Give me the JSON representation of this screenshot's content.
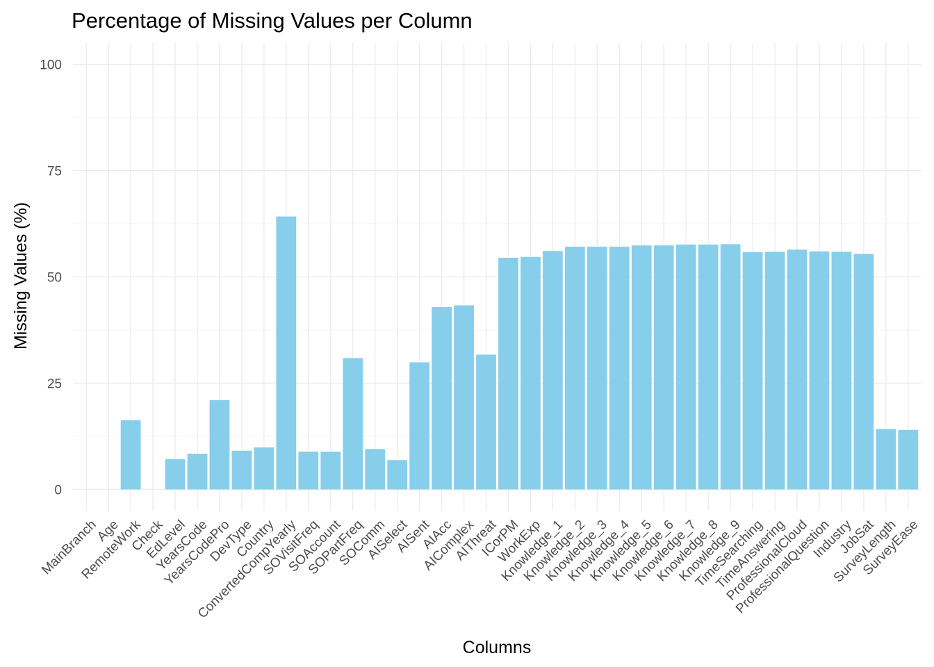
{
  "chart_data": {
    "type": "bar",
    "title": "Percentage of Missing Values per Column",
    "xlabel": "Columns",
    "ylabel": "Missing Values (%)",
    "ylim": [
      -5,
      105
    ],
    "yticks": [
      0,
      25,
      50,
      75,
      100
    ],
    "grid": true,
    "bar_color": "#87ceeb",
    "categories": [
      "MainBranch",
      "Age",
      "RemoteWork",
      "Check",
      "EdLevel",
      "YearsCode",
      "YearsCodePro",
      "DevType",
      "Country",
      "ConvertedCompYearly",
      "SOVisitFreq",
      "SOAccount",
      "SOPartFreq",
      "SOComm",
      "AISelect",
      "AISent",
      "AIAcc",
      "AIComplex",
      "AIThreat",
      "ICorPM",
      "WorkExp",
      "Knowledge_1",
      "Knowledge_2",
      "Knowledge_3",
      "Knowledge_4",
      "Knowledge_5",
      "Knowledge_6",
      "Knowledge_7",
      "Knowledge_8",
      "Knowledge_9",
      "TimeSearching",
      "TimeAnswering",
      "ProfessionalCloud",
      "ProfessionalQuestion",
      "Industry",
      "JobSat",
      "SurveyLength",
      "SurveyEase"
    ],
    "values": [
      0,
      0,
      16.3,
      0,
      7.1,
      8.4,
      21.0,
      9.1,
      9.9,
      64.2,
      8.9,
      8.9,
      30.9,
      9.5,
      6.9,
      29.9,
      42.9,
      43.3,
      31.7,
      54.5,
      54.7,
      56.1,
      57.1,
      57.1,
      57.1,
      57.4,
      57.4,
      57.6,
      57.6,
      57.7,
      55.8,
      55.9,
      56.4,
      56.0,
      55.9,
      55.4,
      14.2,
      14.0
    ]
  }
}
